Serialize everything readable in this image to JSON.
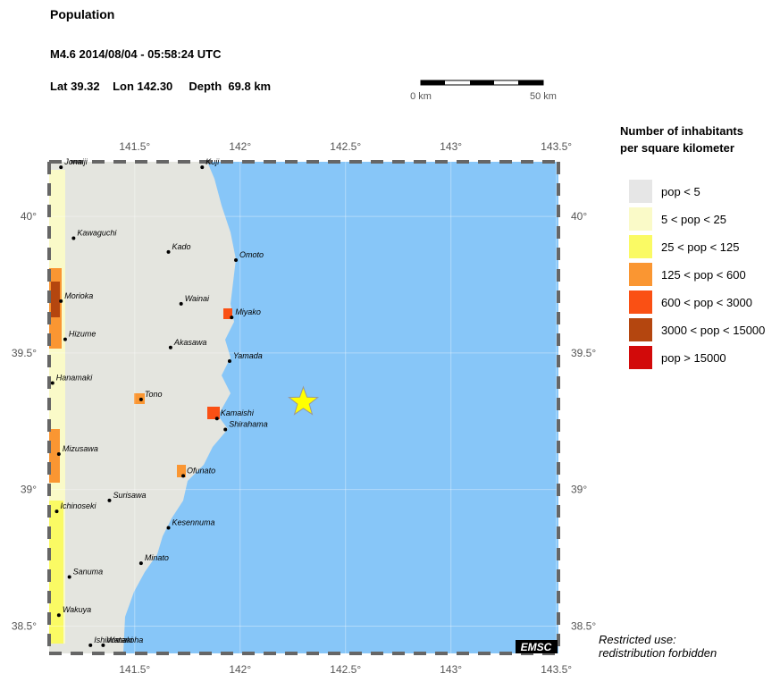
{
  "header": {
    "title": "Population",
    "event": "M4.6  2014/08/04 - 05:58:24 UTC",
    "location": "Lat 39.32    Lon 142.30     Depth  69.8 km"
  },
  "scale_bar": {
    "start_label": "0 km",
    "end_label": "50 km"
  },
  "map": {
    "xlim": [
      141.094,
      143.51
    ],
    "ylim": [
      38.4,
      40.2
    ],
    "xticks": [
      {
        "value": 141.5,
        "label": "141.5°"
      },
      {
        "value": 142,
        "label": "142°"
      },
      {
        "value": 142.5,
        "label": "142.5°"
      },
      {
        "value": 143,
        "label": "143°"
      },
      {
        "value": 143.5,
        "label": "143.5°"
      }
    ],
    "yticks": [
      {
        "value": 40,
        "label": "40°"
      },
      {
        "value": 39.5,
        "label": "39.5°"
      },
      {
        "value": 39,
        "label": "39°"
      },
      {
        "value": 38.5,
        "label": "38.5°"
      }
    ],
    "epicenter": {
      "lon": 142.3,
      "lat": 39.32,
      "color": "#ffff00"
    },
    "towns": [
      {
        "name": "Jonaiji",
        "lon": 141.15,
        "lat": 40.18
      },
      {
        "name": "Kuji",
        "lon": 141.82,
        "lat": 40.18
      },
      {
        "name": "Kawaguchi",
        "lon": 141.21,
        "lat": 39.92
      },
      {
        "name": "Kado",
        "lon": 141.66,
        "lat": 39.87
      },
      {
        "name": "Omoto",
        "lon": 141.98,
        "lat": 39.84
      },
      {
        "name": "Morioka",
        "lon": 141.15,
        "lat": 39.69
      },
      {
        "name": "Wainai",
        "lon": 141.72,
        "lat": 39.68
      },
      {
        "name": "Miyako",
        "lon": 141.96,
        "lat": 39.63
      },
      {
        "name": "Hizume",
        "lon": 141.17,
        "lat": 39.55
      },
      {
        "name": "Akasawa",
        "lon": 141.67,
        "lat": 39.52
      },
      {
        "name": "Yamada",
        "lon": 141.95,
        "lat": 39.47
      },
      {
        "name": "Hanamaki",
        "lon": 141.11,
        "lat": 39.39
      },
      {
        "name": "Tono",
        "lon": 141.53,
        "lat": 39.33
      },
      {
        "name": "Kamaishi",
        "lon": 141.89,
        "lat": 39.26
      },
      {
        "name": "Shirahama",
        "lon": 141.93,
        "lat": 39.22
      },
      {
        "name": "Mizusawa",
        "lon": 141.14,
        "lat": 39.13
      },
      {
        "name": "Ofunato",
        "lon": 141.73,
        "lat": 39.05
      },
      {
        "name": "Surisawa",
        "lon": 141.38,
        "lat": 38.96
      },
      {
        "name": "Ichinoseki",
        "lon": 141.13,
        "lat": 38.92
      },
      {
        "name": "Kesennuma",
        "lon": 141.66,
        "lat": 38.86
      },
      {
        "name": "Minato",
        "lon": 141.53,
        "lat": 38.73
      },
      {
        "name": "Sanuma",
        "lon": 141.19,
        "lat": 38.68
      },
      {
        "name": "Wakuya",
        "lon": 141.14,
        "lat": 38.54
      },
      {
        "name": "Ishinomaki",
        "lon": 141.29,
        "lat": 38.43
      },
      {
        "name": "Watanoha",
        "lon": 141.35,
        "lat": 38.43
      }
    ]
  },
  "legend": {
    "title": [
      "Number of inhabitants",
      "per square kilometer"
    ],
    "items": [
      {
        "label": "pop < 5",
        "color": "#e6e6e6"
      },
      {
        "label": "5 < pop < 25",
        "color": "#fafac8"
      },
      {
        "label": "25 < pop < 125",
        "color": "#fafa64"
      },
      {
        "label": "125 < pop < 600",
        "color": "#fa9632"
      },
      {
        "label": "600 < pop < 3000",
        "color": "#fa5014"
      },
      {
        "label": "3000 < pop < 15000",
        "color": "#b4460f"
      },
      {
        "label": "pop > 15000",
        "color": "#d20a0a"
      }
    ]
  },
  "footer": {
    "credit": "EMSC",
    "note": [
      "Restricted use:",
      "redistribution forbidden"
    ]
  }
}
